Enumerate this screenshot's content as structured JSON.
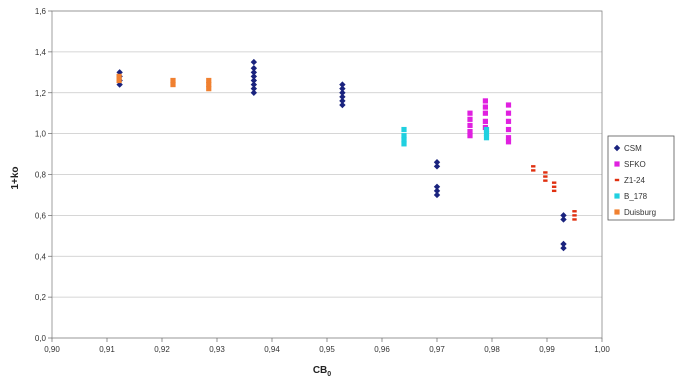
{
  "chart_data": {
    "type": "scatter",
    "xlabel": "CB",
    "xlabel_sub": "0",
    "ylabel": "1+ko",
    "xlim": [
      0.9,
      1.0
    ],
    "ylim": [
      0.0,
      1.6
    ],
    "x_ticks": [
      "0,90",
      "0,91",
      "0,92",
      "0,93",
      "0,94",
      "0,95",
      "0,96",
      "0,97",
      "0,98",
      "0,99",
      "1,00"
    ],
    "y_ticks": [
      "0,0",
      "0,2",
      "0,4",
      "0,6",
      "0,8",
      "1,0",
      "1,2",
      "1,4",
      "1,6"
    ],
    "grid": "horizontal",
    "legend_position": "right",
    "series": [
      {
        "name": "CSM",
        "color": "#1a237e",
        "marker": "diamond",
        "points": [
          [
            0.9123,
            1.3
          ],
          [
            0.9123,
            1.28
          ],
          [
            0.9123,
            1.26
          ],
          [
            0.9123,
            1.24
          ],
          [
            0.9367,
            1.35
          ],
          [
            0.9367,
            1.32
          ],
          [
            0.9367,
            1.3
          ],
          [
            0.9367,
            1.28
          ],
          [
            0.9367,
            1.26
          ],
          [
            0.9367,
            1.24
          ],
          [
            0.9367,
            1.22
          ],
          [
            0.9367,
            1.2
          ],
          [
            0.9528,
            1.24
          ],
          [
            0.9528,
            1.22
          ],
          [
            0.9528,
            1.2
          ],
          [
            0.9528,
            1.18
          ],
          [
            0.9528,
            1.16
          ],
          [
            0.9528,
            1.14
          ],
          [
            0.97,
            0.86
          ],
          [
            0.97,
            0.84
          ],
          [
            0.97,
            0.74
          ],
          [
            0.97,
            0.72
          ],
          [
            0.97,
            0.7
          ],
          [
            0.993,
            0.6
          ],
          [
            0.993,
            0.58
          ],
          [
            0.993,
            0.46
          ],
          [
            0.993,
            0.44
          ]
        ]
      },
      {
        "name": "SFKO",
        "color": "#e020e0",
        "marker": "square",
        "points": [
          [
            0.976,
            1.1
          ],
          [
            0.976,
            1.07
          ],
          [
            0.976,
            1.04
          ],
          [
            0.976,
            1.01
          ],
          [
            0.976,
            0.99
          ],
          [
            0.9788,
            1.16
          ],
          [
            0.9788,
            1.13
          ],
          [
            0.9788,
            1.1
          ],
          [
            0.9788,
            1.06
          ],
          [
            0.9788,
            1.03
          ],
          [
            0.983,
            1.14
          ],
          [
            0.983,
            1.1
          ],
          [
            0.983,
            1.06
          ],
          [
            0.983,
            1.02
          ],
          [
            0.983,
            0.98
          ],
          [
            0.983,
            0.96
          ]
        ]
      },
      {
        "name": "Z1-24",
        "color": "#e03010",
        "marker": "dash",
        "points": [
          [
            0.9875,
            0.84
          ],
          [
            0.9875,
            0.82
          ],
          [
            0.9897,
            0.81
          ],
          [
            0.9897,
            0.79
          ],
          [
            0.9897,
            0.77
          ],
          [
            0.9913,
            0.76
          ],
          [
            0.9913,
            0.74
          ],
          [
            0.9913,
            0.72
          ],
          [
            0.995,
            0.62
          ],
          [
            0.995,
            0.6
          ],
          [
            0.995,
            0.58
          ]
        ]
      },
      {
        "name": "B_178",
        "color": "#20d0e0",
        "marker": "square",
        "points": [
          [
            0.964,
            1.02
          ],
          [
            0.964,
            0.99
          ],
          [
            0.964,
            0.97
          ],
          [
            0.964,
            0.95
          ],
          [
            0.979,
            1.02
          ],
          [
            0.979,
            1.0
          ],
          [
            0.979,
            0.98
          ]
        ]
      },
      {
        "name": "Duisburg",
        "color": "#f08030",
        "marker": "square",
        "points": [
          [
            0.9122,
            1.28
          ],
          [
            0.9122,
            1.26
          ],
          [
            0.922,
            1.26
          ],
          [
            0.922,
            1.24
          ],
          [
            0.9285,
            1.26
          ],
          [
            0.9285,
            1.24
          ],
          [
            0.9285,
            1.22
          ]
        ]
      }
    ]
  }
}
